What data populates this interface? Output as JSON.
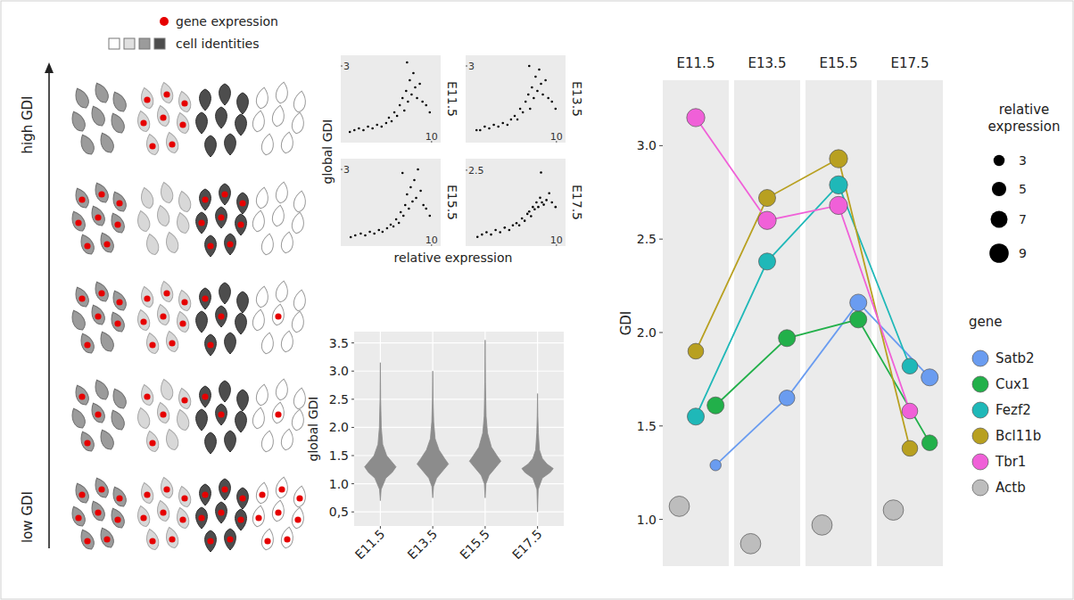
{
  "schematic": {
    "legend_expression": "gene expression",
    "legend_identity": "cell identities",
    "high_label": "high GDI",
    "low_label": "low GDI",
    "expressing_cells": [
      [
        0,
        8,
        0,
        0
      ],
      [
        8,
        0,
        8,
        0
      ],
      [
        6,
        8,
        3,
        1
      ],
      [
        3,
        4,
        2,
        1
      ],
      [
        8,
        8,
        8,
        8
      ]
    ]
  },
  "chart_data": [
    {
      "type": "scatter",
      "x_label": "relative expression",
      "y_label": "global GDI",
      "panels": [
        {
          "title": "E11.5",
          "x": [
            1.0,
            1.5,
            2.0,
            2.5,
            3.0,
            3.5,
            4.0,
            4.5,
            5.0,
            5.3,
            5.6,
            5.9,
            6.2,
            6.5,
            6.8,
            7.0,
            7.2,
            7.4,
            7.6,
            7.8,
            8.0,
            8.2,
            8.4,
            8.7,
            9.0,
            9.4,
            9.8,
            7.3
          ],
          "y": [
            1.15,
            1.2,
            1.25,
            1.2,
            1.3,
            1.25,
            1.35,
            1.3,
            1.4,
            1.55,
            1.45,
            1.7,
            1.6,
            1.9,
            2.1,
            1.75,
            2.3,
            2.0,
            2.6,
            2.2,
            2.8,
            2.4,
            2.1,
            2.5,
            2.0,
            1.9,
            1.7,
            3.1
          ],
          "xlim": [
            0,
            11
          ],
          "ylim": [
            0.85,
            3.3
          ],
          "xticks": [
            10
          ],
          "yticks": [
            3
          ]
        },
        {
          "title": "E13.5",
          "x": [
            1.2,
            1.6,
            2.1,
            2.6,
            3.1,
            3.6,
            4.1,
            4.6,
            5.0,
            5.4,
            5.7,
            6.0,
            6.3,
            6.6,
            6.9,
            7.1,
            7.3,
            7.5,
            7.7,
            7.9,
            8.1,
            8.3,
            8.5,
            8.8,
            9.1,
            9.5,
            9.9,
            7.0
          ],
          "y": [
            1.2,
            1.2,
            1.3,
            1.25,
            1.35,
            1.3,
            1.4,
            1.35,
            1.5,
            1.6,
            1.5,
            1.8,
            1.7,
            2.0,
            2.2,
            1.8,
            2.4,
            2.1,
            2.7,
            2.3,
            2.9,
            2.5,
            2.2,
            2.6,
            2.1,
            2.0,
            1.8,
            3.0
          ],
          "xlim": [
            0,
            11
          ],
          "ylim": [
            0.85,
            3.3
          ],
          "xticks": [
            10
          ],
          "yticks": [
            3
          ]
        },
        {
          "title": "E15.5",
          "x": [
            1.1,
            1.6,
            2.2,
            2.7,
            3.2,
            3.7,
            4.2,
            4.6,
            5.1,
            5.5,
            5.8,
            6.1,
            6.4,
            6.6,
            6.9,
            7.1,
            7.3,
            7.5,
            7.7,
            7.9,
            8.1,
            8.3,
            8.5,
            8.8,
            9.1,
            9.4,
            9.8,
            6.8
          ],
          "y": [
            1.1,
            1.15,
            1.2,
            1.15,
            1.25,
            1.2,
            1.3,
            1.25,
            1.35,
            1.45,
            1.4,
            1.6,
            1.5,
            1.8,
            1.7,
            2.0,
            2.3,
            1.9,
            2.5,
            2.1,
            2.7,
            2.2,
            3.0,
            2.4,
            2.0,
            1.9,
            1.7,
            2.9
          ],
          "xlim": [
            0,
            11
          ],
          "ylim": [
            0.85,
            3.3
          ],
          "xticks": [
            10
          ],
          "yticks": [
            3
          ]
        },
        {
          "title": "E17.5",
          "x": [
            1.3,
            1.8,
            2.3,
            2.8,
            3.3,
            3.8,
            4.3,
            4.8,
            5.2,
            5.6,
            5.9,
            6.2,
            6.5,
            6.8,
            7.0,
            7.2,
            7.4,
            7.6,
            7.8,
            8.0,
            8.2,
            8.4,
            8.6,
            8.9,
            9.2,
            9.5,
            9.9,
            8.3
          ],
          "y": [
            1.05,
            1.1,
            1.15,
            1.1,
            1.2,
            1.15,
            1.25,
            1.2,
            1.3,
            1.35,
            1.3,
            1.45,
            1.4,
            1.55,
            1.6,
            1.5,
            1.7,
            1.65,
            1.8,
            1.7,
            1.9,
            1.8,
            1.75,
            1.85,
            2.0,
            1.8,
            1.7,
            2.45
          ],
          "xlim": [
            0,
            11
          ],
          "ylim": [
            0.85,
            2.75
          ],
          "xticks": [
            10
          ],
          "yticks": [
            2.5
          ]
        }
      ]
    },
    {
      "type": "violin",
      "y_label": "global GDI",
      "categories": [
        "E11.5",
        "E13.5",
        "E15.5",
        "E17.5"
      ],
      "violins": [
        {
          "y": [
            0.7,
            0.9,
            1.1,
            1.2,
            1.3,
            1.4,
            1.5,
            1.7,
            2.0,
            2.5,
            3.15
          ],
          "density": [
            0,
            0.05,
            0.35,
            0.75,
            1,
            0.7,
            0.4,
            0.15,
            0.06,
            0.02,
            0
          ]
        },
        {
          "y": [
            0.75,
            0.95,
            1.1,
            1.25,
            1.35,
            1.45,
            1.6,
            1.8,
            2.1,
            2.5,
            3.0
          ],
          "density": [
            0,
            0.05,
            0.25,
            0.7,
            1,
            0.75,
            0.4,
            0.15,
            0.06,
            0.02,
            0
          ]
        },
        {
          "y": [
            0.75,
            1.0,
            1.15,
            1.3,
            1.4,
            1.5,
            1.65,
            1.9,
            2.2,
            2.8,
            3.55
          ],
          "density": [
            0,
            0.05,
            0.25,
            0.7,
            1,
            0.75,
            0.4,
            0.15,
            0.06,
            0.02,
            0
          ]
        },
        {
          "y": [
            0.5,
            0.9,
            1.1,
            1.2,
            1.27,
            1.35,
            1.45,
            1.6,
            1.9,
            2.2,
            2.6
          ],
          "density": [
            0,
            0.04,
            0.3,
            0.8,
            1,
            0.6,
            0.3,
            0.12,
            0.05,
            0.02,
            0
          ]
        }
      ],
      "color": "#8c8c8c",
      "ylim": [
        0.25,
        3.7
      ],
      "yticks": [
        {
          "value": 0.5,
          "label": "0,5"
        },
        {
          "value": 1,
          "label": "1.0"
        },
        {
          "value": 1.5,
          "label": "1.5"
        },
        {
          "value": 2,
          "label": "2.0"
        },
        {
          "value": 2.5,
          "label": "2.5"
        },
        {
          "value": 3,
          "label": "3.0"
        },
        {
          "value": 3.5,
          "label": "3.5"
        }
      ],
      "grid": true
    },
    {
      "type": "line",
      "y_label": "GDI",
      "categories": [
        "E11.5",
        "E13.5",
        "E15.5",
        "E17.5"
      ],
      "ylim": [
        0.75,
        3.35
      ],
      "yticks": [
        {
          "value": 1,
          "label": "1.0"
        },
        {
          "value": 1.5,
          "label": "1.5"
        },
        {
          "value": 2,
          "label": "2.0"
        },
        {
          "value": 2.5,
          "label": "2.5"
        },
        {
          "value": 3,
          "label": "3.0"
        }
      ],
      "grid": false,
      "legend": "right",
      "legend_title": "gene",
      "size_title": "relative expression",
      "size_ticks": [
        3,
        5,
        7,
        9
      ],
      "marker": "circle",
      "series": [
        {
          "name": "Satb2",
          "color": "#6a9cf0",
          "values": [
            1.29,
            1.65,
            2.16,
            1.76
          ],
          "sizes": [
            3,
            6,
            7,
            7
          ],
          "line_style": "solid"
        },
        {
          "name": "Cux1",
          "color": "#22b04a",
          "values": [
            1.61,
            1.97,
            2.07,
            1.41
          ],
          "sizes": [
            7,
            7,
            7,
            6
          ],
          "line_style": "solid"
        },
        {
          "name": "Fezf2",
          "color": "#1fb8b8",
          "values": [
            1.55,
            2.38,
            2.79,
            1.82
          ],
          "sizes": [
            7,
            7,
            8,
            6
          ],
          "line_style": "solid"
        },
        {
          "name": "Bcl11b",
          "color": "#b8a020",
          "values": [
            1.9,
            2.72,
            2.93,
            1.38
          ],
          "sizes": [
            6,
            7,
            8,
            6
          ],
          "line_style": "solid"
        },
        {
          "name": "Tbr1",
          "color": "#f060d8",
          "values": [
            3.15,
            2.6,
            2.68,
            1.58
          ],
          "sizes": [
            8,
            8,
            8,
            6
          ],
          "line_style": "solid"
        },
        {
          "name": "Actb",
          "color": "#bdbdbd",
          "values": [
            1.07,
            0.87,
            0.97,
            1.05
          ],
          "sizes": [
            10,
            10,
            10,
            10
          ],
          "line_style": "none"
        }
      ]
    }
  ]
}
